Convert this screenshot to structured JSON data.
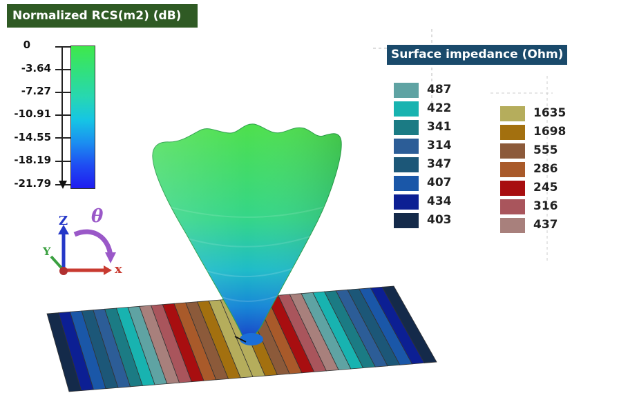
{
  "rcs_scale": {
    "title": "Normalized RCS(m2) (dB)",
    "ticks": [
      "0",
      "-3.64",
      "-7.27",
      "-10.91",
      "-14.55",
      "-18.19",
      "-21.79"
    ]
  },
  "impedance_legend": {
    "title": "Surface impedance (Ohm)",
    "column_left": [
      {
        "value": "487",
        "color": "#5fa3a3"
      },
      {
        "value": "422",
        "color": "#18b3b0"
      },
      {
        "value": "341",
        "color": "#1b7b84"
      },
      {
        "value": "314",
        "color": "#2c5d97"
      },
      {
        "value": "347",
        "color": "#1c5778"
      },
      {
        "value": "407",
        "color": "#1a57a8"
      },
      {
        "value": "434",
        "color": "#0c1f93"
      },
      {
        "value": "403",
        "color": "#142a4a"
      }
    ],
    "column_right": [
      {
        "value": "1635",
        "color": "#b5ad5c"
      },
      {
        "value": "1698",
        "color": "#a3700f"
      },
      {
        "value": "555",
        "color": "#8c5a3a"
      },
      {
        "value": "286",
        "color": "#a95a2a"
      },
      {
        "value": "245",
        "color": "#a80e10"
      },
      {
        "value": "316",
        "color": "#a9555c"
      },
      {
        "value": "437",
        "color": "#a8807c"
      }
    ]
  },
  "axes": {
    "z": "Z",
    "y": "Y",
    "x": "x",
    "theta": "θ"
  }
}
